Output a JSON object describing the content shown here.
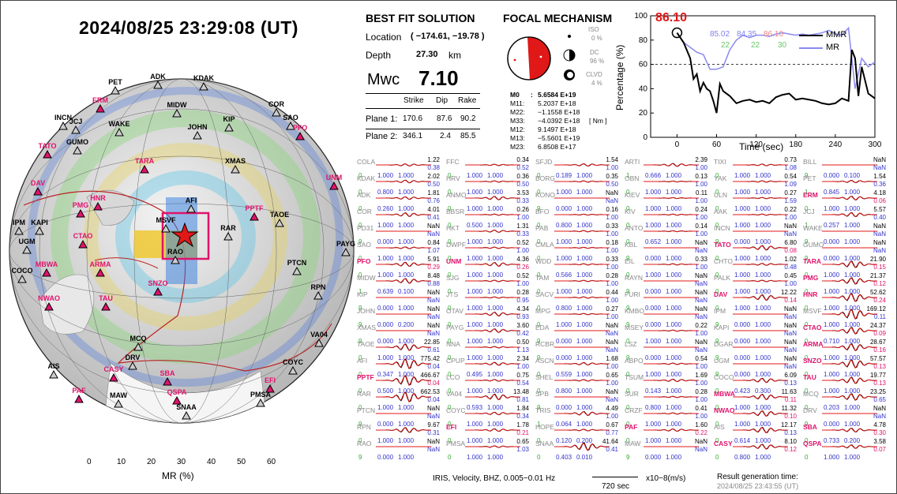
{
  "header": {
    "datetime": "2024/08/25  23:29:08 (UT)"
  },
  "colorbar": {
    "ticks": [
      "0",
      "10",
      "20",
      "30",
      "40",
      "50",
      "60"
    ],
    "label": "MR (%)"
  },
  "best_fit": {
    "title": "BEST FIT SOLUTION",
    "location_label": "Location",
    "location_value": "( −174.61, −19.78 )",
    "depth_label": "Depth",
    "depth_value": "27.30",
    "depth_unit": "km",
    "mw_label": "Mwc",
    "mw_value": "7.10",
    "planes_header": [
      "Strike",
      "Dip",
      "Rake"
    ],
    "planes": [
      {
        "label": "Plane 1:",
        "strike": "170.6",
        "dip": "87.6",
        "rake": "90.2"
      },
      {
        "label": "Plane 2:",
        "strike": "346.1",
        "dip": "2.4",
        "rake": "85.5"
      }
    ]
  },
  "focal": {
    "title": "FOCAL MECHANISM",
    "components": [
      {
        "name": "ISO",
        "value": "0 %"
      },
      {
        "name": "DC",
        "value": "96 %"
      },
      {
        "name": "CLVD",
        "value": "4 %"
      }
    ],
    "tensor": [
      {
        "k": "M0",
        "v": "5.6584 E+19"
      },
      {
        "k": "M11:",
        "v": "5.2037 E+18"
      },
      {
        "k": "M22:",
        "v": "−1.1558 E+18"
      },
      {
        "k": "M33:",
        "v": "−4.0392 E+18"
      },
      {
        "k": "M12:",
        "v": "9.1497 E+18"
      },
      {
        "k": "M13:",
        "v": "−5.5601 E+19"
      },
      {
        "k": "M23:",
        "v": "6.8508 E+17"
      }
    ],
    "unit": "[ Nm ]"
  },
  "mr_chart": {
    "ylabel": "Percentage (%)",
    "xlabel": "Time (sec)",
    "peak_label": "86.10",
    "annotations": [
      "85.02",
      "84.35",
      "86.10",
      "22",
      "22",
      "30"
    ],
    "legend": [
      "MMR",
      "MR"
    ]
  },
  "chart_data": {
    "type": "line",
    "x_ticks": [
      "0",
      "60",
      "120",
      "180",
      "240",
      "300"
    ],
    "y_ticks": [
      "0",
      "20",
      "40",
      "60",
      "80",
      "100"
    ],
    "xlim": [
      -40,
      300
    ],
    "ylim": [
      0,
      100
    ],
    "threshold": 60,
    "series": [
      {
        "name": "MMR",
        "x": [
          0,
          10,
          20,
          25,
          30,
          35,
          40,
          45,
          50,
          55,
          60,
          65,
          70,
          75,
          80,
          90,
          100,
          110,
          120,
          130,
          140,
          150,
          160,
          170,
          180,
          190,
          200,
          210,
          220,
          230,
          240,
          250,
          260,
          265,
          270,
          275,
          280,
          290,
          300
        ],
        "values": [
          86,
          78,
          65,
          48,
          52,
          38,
          45,
          40,
          38,
          30,
          20,
          44,
          38,
          36,
          34,
          28,
          30,
          31,
          29,
          30,
          28,
          33,
          35,
          36,
          31,
          32,
          31,
          30,
          28,
          27,
          28,
          32,
          30,
          72,
          65,
          34,
          58,
          36,
          32
        ]
      },
      {
        "name": "MR",
        "x": [
          0,
          10,
          20,
          30,
          40,
          50,
          60,
          70,
          80,
          90,
          100,
          110,
          120,
          130,
          140,
          150,
          160,
          170,
          180,
          190,
          200,
          210,
          220,
          230,
          240,
          250,
          260,
          270,
          280,
          290,
          300
        ],
        "values": [
          86,
          78,
          74,
          70,
          68,
          56,
          56,
          58,
          72,
          80,
          84,
          82,
          84,
          84,
          83,
          85,
          86,
          85,
          84,
          85,
          84,
          85,
          86,
          88,
          85,
          84,
          90,
          40,
          65,
          58,
          62
        ]
      }
    ]
  },
  "waveforms": [
    [
      "COLA",
      "1.22",
      "0",
      "1.000",
      "1.000",
      "0.38",
      false
    ],
    [
      "FFC",
      "0.34",
      "0",
      "1.000",
      "1.000",
      "0.52",
      false
    ],
    [
      "SFJD",
      "1.54",
      "0",
      "0.189",
      "1.000",
      "1.00",
      false
    ],
    [
      "ARTI",
      "2.39",
      "1",
      "0.666",
      "1.000",
      "1.00",
      false
    ],
    [
      "TIXI",
      "0.73",
      "0",
      "1.000",
      "1.000",
      "1.08",
      false
    ],
    [
      "BILL",
      "NaN",
      "9",
      "0.000",
      "0.100",
      "NaN",
      false
    ],
    [
      "KDAK",
      "2.02",
      "0",
      "0.800",
      "1.000",
      "0.50",
      false
    ],
    [
      "HRV",
      "0.36",
      "0",
      "1.000",
      "1.000",
      "0.50",
      false
    ],
    [
      "BORG",
      "0.35",
      "0",
      "1.000",
      "1.000",
      "0.50",
      false
    ],
    [
      "OBN",
      "0.13",
      "0",
      "1.000",
      "1.000",
      "1.00",
      false
    ],
    [
      "YAK",
      "0.54",
      "0",
      "1.000",
      "1.000",
      "1.09",
      false
    ],
    [
      "PET",
      "1.54",
      "1",
      "0.845",
      "1.000",
      "0.36",
      false
    ],
    [
      "ADK",
      "1.81",
      "0",
      "0.260",
      "1.000",
      "0.76",
      false
    ],
    [
      "ANMO",
      "3.53",
      "0",
      "1.000",
      "1.000",
      "0.33",
      false
    ],
    [
      "KONO",
      "NaN",
      "9",
      "0.000",
      "1.000",
      "NaN",
      false
    ],
    [
      "KIEV",
      "0.11",
      "0",
      "1.000",
      "1.000",
      "1.00",
      false
    ],
    [
      "ULN",
      "0.27",
      "0",
      "1.000",
      "1.000",
      "1.59",
      false
    ],
    [
      "ERM",
      "4.18",
      "0",
      "1.000",
      "1.000",
      "0.06",
      true
    ],
    [
      "COR",
      "4.01",
      "0",
      "1.000",
      "1.000",
      "0.41",
      false
    ],
    [
      "BBSR",
      "0.26",
      "0",
      "0.500",
      "1.000",
      "1.00",
      false
    ],
    [
      "BFO",
      "0.16",
      "0",
      "0.800",
      "1.000",
      "1.00",
      false
    ],
    [
      "KIV",
      "0.24",
      "0",
      "1.000",
      "1.000",
      "1.00",
      false
    ],
    [
      "AAK",
      "0.22",
      "0",
      "1.000",
      "1.000",
      "1.00",
      false
    ],
    [
      "JCJ",
      "5.57",
      "1",
      "0.257",
      "1.000",
      "0.40",
      false
    ],
    [
      "PD31",
      "NaN",
      "9",
      "0.000",
      "1.000",
      "NaN",
      false
    ],
    [
      "HKT",
      "1.31",
      "0",
      "1.000",
      "1.000",
      "0.33",
      false
    ],
    [
      "PAB",
      "0.33",
      "0",
      "1.000",
      "1.000",
      "1.00",
      false
    ],
    [
      "ANTO",
      "0.14",
      "0",
      "0.652",
      "1.000",
      "1.00",
      false
    ],
    [
      "INCN",
      "NaN",
      "9",
      "0.000",
      "1.000",
      "NaN",
      false
    ],
    [
      "WAKE",
      "NaN",
      "9",
      "0.000",
      "1.000",
      "NaN",
      false
    ],
    [
      "SAO",
      "0.84",
      "0",
      "1.000",
      "1.000",
      "1.07",
      false
    ],
    [
      "DWPF",
      "0.52",
      "0",
      "1.000",
      "1.000",
      "1.00",
      false
    ],
    [
      "CMLA",
      "0.18",
      "0",
      "1.000",
      "1.000",
      "1.00",
      false
    ],
    [
      "KBL",
      "NaN",
      "9",
      "0.000",
      "1.000",
      "NaN",
      false
    ],
    [
      "TATO",
      "6.80",
      "0",
      "1.000",
      "1.000",
      "0.08",
      true
    ],
    [
      "GUMO",
      "NaN",
      "9",
      "0.000",
      "1.000",
      "NaN",
      false
    ],
    [
      "PFO",
      "5.91",
      "0",
      "1.000",
      "1.000",
      "0.29",
      true
    ],
    [
      "UNM",
      "4.36",
      "0",
      "1.000",
      "1.000",
      "0.26",
      true
    ],
    [
      "WDD",
      "0.33",
      "0",
      "0.566",
      "1.000",
      "1.00",
      false
    ],
    [
      "EIL",
      "0.33",
      "0",
      "1.000",
      "1.000",
      "1.00",
      false
    ],
    [
      "CHTO",
      "1.02",
      "0",
      "1.000",
      "1.000",
      "0.48",
      false
    ],
    [
      "TARA",
      "21.90",
      "0",
      "1.000",
      "1.000",
      "0.15",
      true
    ],
    [
      "MIDW",
      "8.48",
      "1",
      "0.639",
      "0.100",
      "0.88",
      false
    ],
    [
      "SJG",
      "0.52",
      "0",
      "1.000",
      "1.000",
      "1.00",
      false
    ],
    [
      "TAM",
      "0.28",
      "0",
      "1.000",
      "1.000",
      "1.00",
      false
    ],
    [
      "RAYN",
      "NaN",
      "9",
      "0.000",
      "1.000",
      "NaN",
      false
    ],
    [
      "PALK",
      "0.45",
      "0",
      "1.000",
      "1.000",
      "1.00",
      false
    ],
    [
      "PMG",
      "21.37",
      "0",
      "1.000",
      "1.000",
      "0.12",
      true
    ],
    [
      "KIP",
      "NaN",
      "9",
      "0.000",
      "1.000",
      "NaN",
      false
    ],
    [
      "JTS",
      "0.28",
      "0",
      "1.000",
      "1.000",
      "0.95",
      false
    ],
    [
      "SACV",
      "0.44",
      "0",
      "0.800",
      "1.000",
      "1.00",
      false
    ],
    [
      "FURI",
      "NaN",
      "9",
      "0.000",
      "1.000",
      "NaN",
      false
    ],
    [
      "DAV",
      "12.22",
      "0",
      "1.000",
      "1.000",
      "0.14",
      true
    ],
    [
      "HNR",
      "52.62",
      "0",
      "1.000",
      "1.000",
      "0.24",
      true
    ],
    [
      "JOHN",
      "NaN",
      "9",
      "0.000",
      "0.200",
      "NaN",
      false
    ],
    [
      "OTAV",
      "4.34",
      "0",
      "1.000",
      "1.000",
      "0.93",
      false
    ],
    [
      "MPG",
      "0.27",
      "0",
      "1.000",
      "1.000",
      "1.00",
      false
    ],
    [
      "KMBO",
      "NaN",
      "9",
      "0.000",
      "1.000",
      "NaN",
      false
    ],
    [
      "IPM",
      "NaN",
      "9",
      "0.000",
      "1.000",
      "NaN",
      false
    ],
    [
      "MSVF",
      "169.12",
      "0",
      "1.000",
      "1.000",
      "0.11",
      false
    ],
    [
      "XMAS",
      "NaN",
      "9",
      "0.000",
      "1.000",
      "NaN",
      false
    ],
    [
      "PAYG",
      "3.60",
      "0",
      "1.000",
      "1.000",
      "0.42",
      false
    ],
    [
      "EDA",
      "NaN",
      "9",
      "0.000",
      "1.000",
      "NaN",
      false
    ],
    [
      "MSEY",
      "0.22",
      "0",
      "1.000",
      "1.000",
      "1.00",
      false
    ],
    [
      "KAPI",
      "NaN",
      "9",
      "0.000",
      "1.000",
      "NaN",
      false
    ],
    [
      "CTAO",
      "24.37",
      "0",
      "0.710",
      "1.000",
      "0.09",
      true
    ],
    [
      "TAOE",
      "22.85",
      "0",
      "1.000",
      "1.000",
      "0.61",
      false
    ],
    [
      "NNA",
      "0.50",
      "0",
      "1.000",
      "1.000",
      "1.13",
      false
    ],
    [
      "RCBR",
      "NaN",
      "9",
      "0.000",
      "1.000",
      "NaN",
      false
    ],
    [
      "LSZ",
      "NaN",
      "9",
      "0.000",
      "1.000",
      "NaN",
      false
    ],
    [
      "DGAR",
      "NaN",
      "9",
      "0.000",
      "1.000",
      "NaN",
      false
    ],
    [
      "ARMA",
      "28.67",
      "0",
      "1.000",
      "1.000",
      "0.16",
      true
    ],
    [
      "AFI",
      "775.42",
      "0",
      "0.347",
      "1.000",
      "0.04",
      false
    ],
    [
      "CPUP",
      "2.34",
      "0",
      "0.495",
      "1.000",
      "1.00",
      false
    ],
    [
      "ASCN",
      "1.68",
      "0",
      "0.559",
      "1.000",
      "1.00",
      false
    ],
    [
      "ABPO",
      "0.54",
      "0",
      "1.000",
      "1.000",
      "1.00",
      false
    ],
    [
      "UGM",
      "NaN",
      "9",
      "0.000",
      "1.000",
      "NaN",
      false
    ],
    [
      "SNZO",
      "57.57",
      "0",
      "1.000",
      "1.000",
      "0.13",
      true
    ],
    [
      "PPTF",
      "466.67",
      "0",
      "0.500",
      "1.000",
      "0.04",
      true
    ],
    [
      "LCO",
      "0.75",
      "0",
      "1.000",
      "1.000",
      "0.54",
      false
    ],
    [
      "SHEL",
      "0.65",
      "0",
      "0.800",
      "1.000",
      "1.00",
      false
    ],
    [
      "TSUM",
      "1.69",
      "0",
      "0.143",
      "1.000",
      "1.00",
      false
    ],
    [
      "COCO",
      "6.09",
      "0",
      "0.423",
      "0.300",
      "0.13",
      false
    ],
    [
      "TAU",
      "19.77",
      "0",
      "1.000",
      "1.000",
      "0.13",
      true
    ],
    [
      "RAR",
      "662.53",
      "0",
      "1.000",
      "1.000",
      "0.04",
      false
    ],
    [
      "VA04",
      "13.48",
      "0",
      "0.593",
      "1.000",
      "0.81",
      false
    ],
    [
      "SPB",
      "NaN",
      "9",
      "0.000",
      "1.000",
      "NaN",
      false
    ],
    [
      "SUR",
      "0.28",
      "0",
      "0.800",
      "1.000",
      "1.00",
      false
    ],
    [
      "MBWA",
      "11.63",
      "0",
      "1.000",
      "1.000",
      "0.11",
      true
    ],
    [
      "MCQ",
      "23.25",
      "0",
      "0.203",
      "1.000",
      "0.65",
      false
    ],
    [
      "PTCN",
      "NaN",
      "9",
      "0.000",
      "1.000",
      "NaN",
      false
    ],
    [
      "COYC",
      "1.84",
      "0",
      "1.000",
      "1.000",
      "0.34",
      false
    ],
    [
      "TRIS",
      "4.49",
      "1",
      "0.064",
      "1.000",
      "1.00",
      false
    ],
    [
      "CRZF",
      "0.41",
      "0",
      "1.000",
      "1.000",
      "1.00",
      false
    ],
    [
      "NWAO",
      "11.32",
      "0",
      "1.000",
      "1.000",
      "0.10",
      true
    ],
    [
      "DRV",
      "NaN",
      "9",
      "0.000",
      "1.000",
      "NaN",
      false
    ],
    [
      "RPN",
      "9.67",
      "0",
      "1.000",
      "1.000",
      "0.31",
      false
    ],
    [
      "EFI",
      "1.78",
      "0",
      "1.000",
      "1.000",
      "0.21",
      true
    ],
    [
      "HOPE",
      "0.67",
      "0",
      "0.120",
      "0.200",
      "0.77",
      false
    ],
    [
      "PAF",
      "1.60",
      "0",
      "1.000",
      "1.000",
      "0.22",
      true
    ],
    [
      "AIS",
      "12.17",
      "0",
      "0.614",
      "1.000",
      "0.13",
      false
    ],
    [
      "SBA",
      "4.78",
      "0",
      "0.733",
      "0.200",
      "0.30",
      true
    ],
    [
      "RAO",
      "NaN",
      "9",
      "0.000",
      "1.000",
      "NaN",
      false
    ],
    [
      "PMSA",
      "0.65",
      "0",
      "1.000",
      "1.000",
      "1.03",
      false
    ],
    [
      "SNAA",
      "41.64",
      "0",
      "0.403",
      "0.010",
      "0.41",
      false
    ],
    [
      "MAW",
      "NaN",
      "9",
      "0.000",
      "1.000",
      "NaN",
      false
    ],
    [
      "CASY",
      "8.10",
      "0",
      "0.800",
      "1.000",
      "0.12",
      true
    ],
    [
      "QSPA",
      "3.58",
      "0",
      "1.000",
      "1.000",
      "0.07",
      true
    ]
  ],
  "footer": {
    "network": "IRIS,  Velocity,   BHZ,  0.005−0.01 Hz",
    "scale": "720 sec",
    "units": "x10−8(m/s)",
    "result_label": "Result generation time:",
    "result_time": "2024/08/25 23:43:55 (UT)"
  },
  "map_stations": [
    [
      "PET",
      false
    ],
    [
      "ADK",
      false
    ],
    [
      "KDAK",
      false
    ],
    [
      "ERM",
      true
    ],
    [
      "MIDW",
      false
    ],
    [
      "COR",
      false
    ],
    [
      "INCN",
      false
    ],
    [
      "JCJ",
      false
    ],
    [
      "SAO",
      false
    ],
    [
      "WAKE",
      false
    ],
    [
      "JOHN",
      false
    ],
    [
      "KIP",
      false
    ],
    [
      "PFO",
      true
    ],
    [
      "TATO",
      true
    ],
    [
      "GUMO",
      false
    ],
    [
      "TARA",
      true
    ],
    [
      "XMAS",
      false
    ],
    [
      "DAV",
      true
    ],
    [
      "UNM",
      true
    ],
    [
      "HNR",
      true
    ],
    [
      "AFI",
      false
    ],
    [
      "PMG",
      true
    ],
    [
      "MSVF",
      false
    ],
    [
      "IPM",
      false
    ],
    [
      "KAPI",
      false
    ],
    [
      "TAOE",
      false
    ],
    [
      "PPTF",
      true
    ],
    [
      "RAR",
      false
    ],
    [
      "UGM",
      false
    ],
    [
      "CTAO",
      true
    ],
    [
      "PAYG",
      false
    ],
    [
      "RAO",
      false
    ],
    [
      "COCO",
      false
    ],
    [
      "MBWA",
      true
    ],
    [
      "ARMA",
      true
    ],
    [
      "PTCN",
      false
    ],
    [
      "SNZO",
      true
    ],
    [
      "RPN",
      false
    ],
    [
      "NWAO",
      true
    ],
    [
      "TAU",
      true
    ],
    [
      "MCQ",
      false
    ],
    [
      "VA04",
      false
    ],
    [
      "AIS",
      false
    ],
    [
      "DRV",
      false
    ],
    [
      "CASY",
      true
    ],
    [
      "SBA",
      true
    ],
    [
      "COYC",
      false
    ],
    [
      "PAF",
      true
    ],
    [
      "MAW",
      false
    ],
    [
      "QSPA",
      true
    ],
    [
      "PMSA",
      false
    ],
    [
      "EFI",
      true
    ],
    [
      "SNAA",
      false
    ]
  ]
}
